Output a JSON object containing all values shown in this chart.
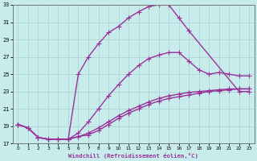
{
  "xlabel": "Windchill (Refroidissement éolien,°C)",
  "xlim": [
    -0.5,
    23.5
  ],
  "ylim": [
    17,
    33
  ],
  "xticks": [
    0,
    1,
    2,
    3,
    4,
    5,
    6,
    7,
    8,
    9,
    10,
    11,
    12,
    13,
    14,
    15,
    16,
    17,
    18,
    19,
    20,
    21,
    22,
    23
  ],
  "yticks": [
    17,
    19,
    21,
    23,
    25,
    27,
    29,
    31,
    33
  ],
  "bg_color": "#c8ecec",
  "grid_color": "#b0d8d8",
  "line_color": "#993399",
  "line1_x": [
    0,
    1,
    2,
    3,
    4,
    5,
    6,
    7,
    8,
    9,
    10,
    11,
    12,
    13,
    14,
    15,
    16,
    17,
    22,
    23
  ],
  "line1_y": [
    19.2,
    18.8,
    17.7,
    17.5,
    17.5,
    17.5,
    25.0,
    27.0,
    28.5,
    29.8,
    30.5,
    31.5,
    32.2,
    32.8,
    33.0,
    33.0,
    31.5,
    30.0,
    23.0,
    23.0
  ],
  "line2_x": [
    0,
    1,
    2,
    3,
    4,
    5,
    6,
    7,
    8,
    9,
    10,
    11,
    12,
    13,
    14,
    15,
    16,
    17,
    18,
    19,
    20,
    21,
    22,
    23
  ],
  "line2_y": [
    19.2,
    18.8,
    17.7,
    17.5,
    17.5,
    17.5,
    18.2,
    19.5,
    21.0,
    22.5,
    23.8,
    25.0,
    26.0,
    26.8,
    27.2,
    27.5,
    27.5,
    26.5,
    25.5,
    25.0,
    25.2,
    25.0,
    24.8,
    24.8
  ],
  "line3_x": [
    0,
    1,
    2,
    3,
    4,
    5,
    6,
    7,
    8,
    9,
    10,
    11,
    12,
    13,
    14,
    15,
    16,
    17,
    18,
    19,
    20,
    21,
    22,
    23
  ],
  "line3_y": [
    19.2,
    18.8,
    17.7,
    17.5,
    17.5,
    17.5,
    17.8,
    18.2,
    18.8,
    19.5,
    20.2,
    20.8,
    21.3,
    21.8,
    22.2,
    22.5,
    22.7,
    22.9,
    23.0,
    23.1,
    23.2,
    23.3,
    23.3,
    23.3
  ],
  "line4_x": [
    0,
    1,
    2,
    3,
    4,
    5,
    6,
    7,
    8,
    9,
    10,
    11,
    12,
    13,
    14,
    15,
    16,
    17,
    18,
    19,
    20,
    21,
    22,
    23
  ],
  "line4_y": [
    19.2,
    18.8,
    17.7,
    17.5,
    17.5,
    17.5,
    17.8,
    18.0,
    18.5,
    19.2,
    19.9,
    20.5,
    21.0,
    21.5,
    21.9,
    22.2,
    22.4,
    22.6,
    22.8,
    23.0,
    23.1,
    23.2,
    23.3,
    23.3
  ],
  "marker": "+",
  "marker_size": 4,
  "linewidth": 1.0
}
